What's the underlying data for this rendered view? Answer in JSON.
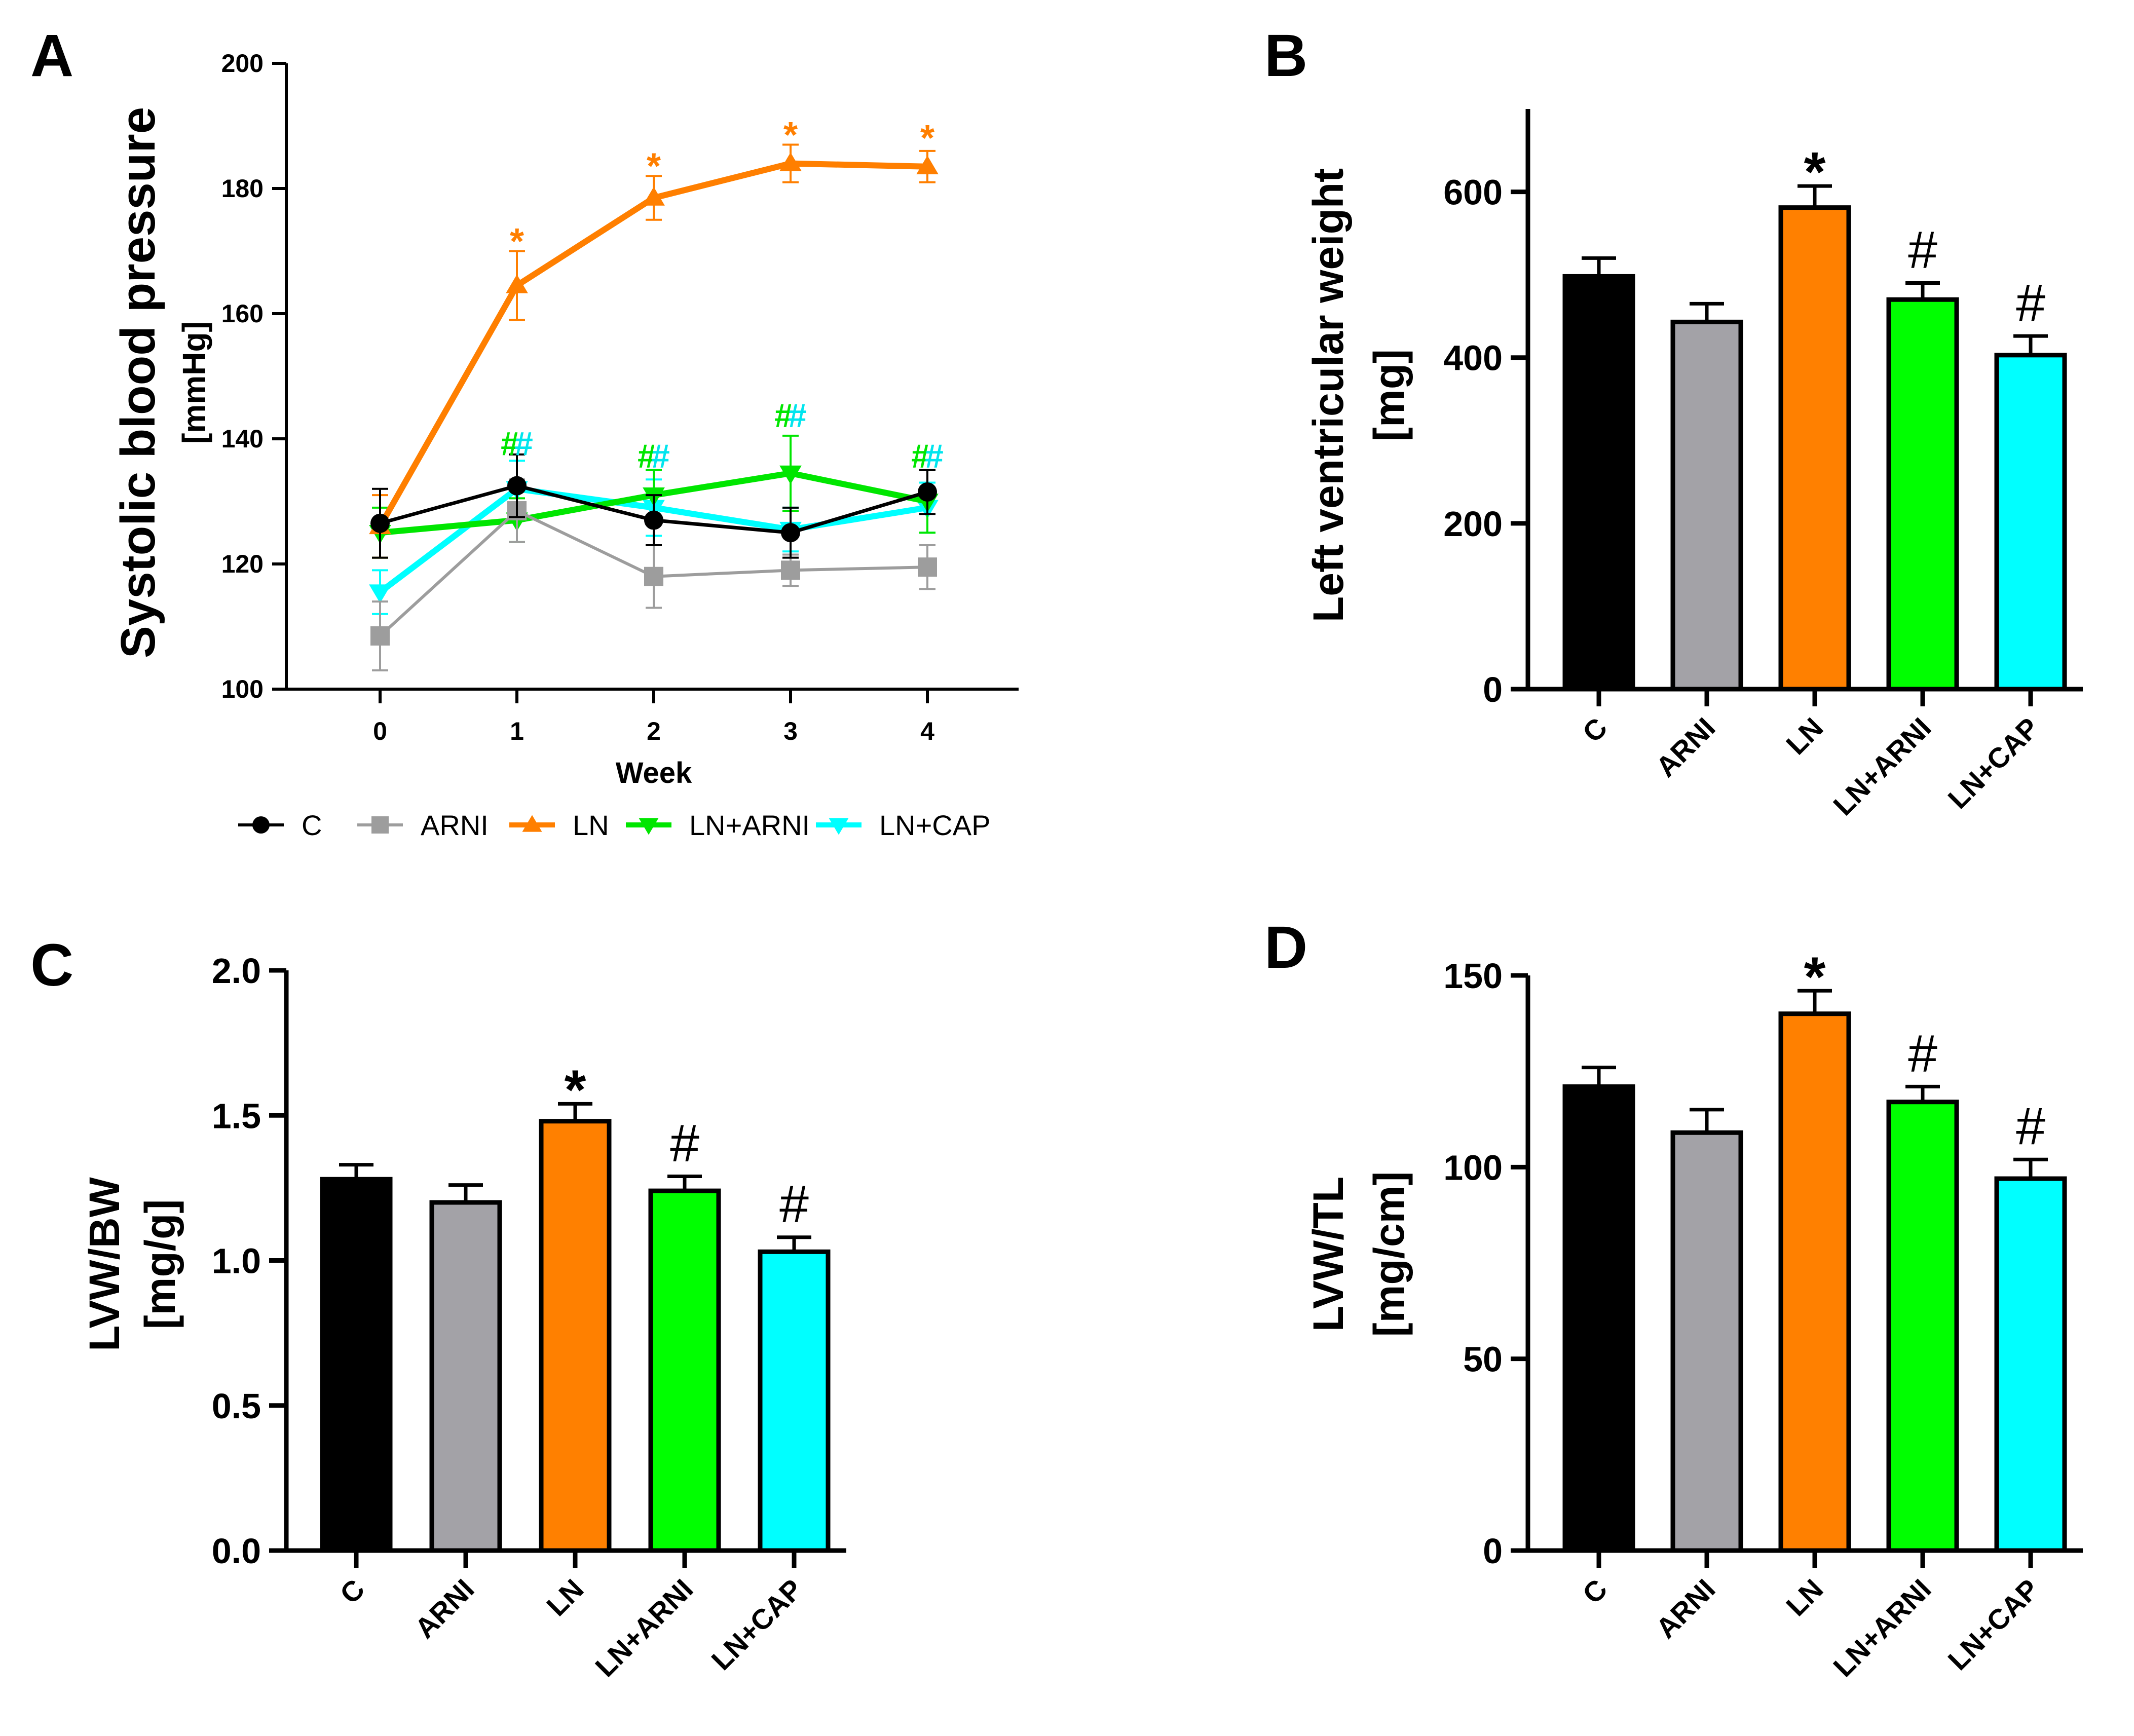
{
  "figure": {
    "panels": [
      "A",
      "B",
      "C",
      "D"
    ]
  },
  "legend": {
    "entries": [
      {
        "label": "C",
        "color": "#000000",
        "marker": "circle"
      },
      {
        "label": "ARNI",
        "color": "#9d9d9d",
        "marker": "square"
      },
      {
        "label": "LN",
        "color": "#ff7f00",
        "marker": "triangle-up"
      },
      {
        "label": "LN+ARNI",
        "color": "#00e600",
        "marker": "triangle-down"
      },
      {
        "label": "LN+CAP",
        "color": "#00ffff",
        "marker": "triangle-down"
      }
    ]
  },
  "chart_data": [
    {
      "panel": "A",
      "type": "line",
      "title": "",
      "ylabel": "Systolic blood pressure",
      "ylabel_unit": "[mmHg]",
      "xlabel": "Week",
      "x": [
        0,
        1,
        2,
        3,
        4
      ],
      "xticks": [
        "0",
        "1",
        "2",
        "3",
        "4"
      ],
      "ylim": [
        100,
        200
      ],
      "yticks": [
        100,
        120,
        140,
        160,
        180,
        200
      ],
      "grid": false,
      "legend_position": "bottom",
      "series": [
        {
          "name": "C",
          "color": "#000000",
          "marker": "circle",
          "values": [
            126.5,
            132.5,
            127,
            125,
            131.5
          ],
          "errors": [
            5.5,
            5,
            4,
            4,
            3.5
          ]
        },
        {
          "name": "ARNI",
          "color": "#9d9d9d",
          "marker": "square",
          "values": [
            108.5,
            128.5,
            118,
            119,
            119.5
          ],
          "errors": [
            5.5,
            5,
            5,
            2.5,
            3.5
          ]
        },
        {
          "name": "LN",
          "color": "#ff7f00",
          "marker": "triangle-up",
          "values": [
            126,
            164.5,
            178.5,
            184,
            183.5
          ],
          "errors": [
            5,
            5.5,
            3.5,
            3,
            2.5
          ]
        },
        {
          "name": "LN+ARNI",
          "color": "#00e600",
          "marker": "triangle-down",
          "values": [
            125,
            127,
            131,
            134.5,
            130
          ],
          "errors": [
            4,
            3.5,
            4,
            6,
            5
          ]
        },
        {
          "name": "LN+CAP",
          "color": "#00ffff",
          "marker": "triangle-down",
          "values": [
            115.5,
            132,
            129,
            125.5,
            129
          ],
          "errors": [
            3.5,
            4.5,
            4.5,
            3.5,
            4
          ]
        }
      ],
      "annotations": [
        {
          "x": 1,
          "y": 172,
          "text": "*",
          "color": "#ff7f00"
        },
        {
          "x": 2,
          "y": 184,
          "text": "*",
          "color": "#ff7f00"
        },
        {
          "x": 3,
          "y": 189,
          "text": "*",
          "color": "#ff7f00"
        },
        {
          "x": 4,
          "y": 188.5,
          "text": "*",
          "color": "#ff7f00"
        },
        {
          "x": 1,
          "y": 139,
          "text": "#",
          "color": "#00e600",
          "dx": -0.1
        },
        {
          "x": 1,
          "y": 139,
          "text": "#",
          "color": "#00e5ee",
          "dx": 0.1
        },
        {
          "x": 2,
          "y": 137,
          "text": "#",
          "color": "#00e600",
          "dx": -0.1
        },
        {
          "x": 2,
          "y": 137,
          "text": "#",
          "color": "#00e5ee",
          "dx": 0.1
        },
        {
          "x": 3,
          "y": 143.5,
          "text": "#",
          "color": "#00e600",
          "dx": -0.1
        },
        {
          "x": 3,
          "y": 143.5,
          "text": "#",
          "color": "#00e5ee",
          "dx": 0.1
        },
        {
          "x": 4,
          "y": 137,
          "text": "#",
          "color": "#00e600",
          "dx": -0.1
        },
        {
          "x": 4,
          "y": 137,
          "text": "#",
          "color": "#00e5ee",
          "dx": 0.1
        }
      ]
    },
    {
      "panel": "B",
      "type": "bar",
      "title": "",
      "ylabel": "Left ventricular weight",
      "ylabel_unit": "[mg]",
      "xlabel": "",
      "categories": [
        "C",
        "ARNI",
        "LN",
        "LN+ARNI",
        "LN+CAP"
      ],
      "values": [
        498,
        443,
        581,
        470,
        403
      ],
      "errors": [
        22,
        22,
        26,
        20,
        23
      ],
      "colors": [
        "#000000",
        "#a3a2a7",
        "#ff8000",
        "#00ff00",
        "#00ffff"
      ],
      "marks": [
        "",
        "",
        "*",
        "#",
        "#"
      ],
      "ylim": [
        0,
        700
      ],
      "yticks": [
        0,
        200,
        400,
        600
      ],
      "grid": false
    },
    {
      "panel": "C",
      "type": "bar",
      "title": "",
      "ylabel": "LVW/BW",
      "ylabel_unit": "[mg/g]",
      "xlabel": "",
      "categories": [
        "C",
        "ARNI",
        "LN",
        "LN+ARNI",
        "LN+CAP"
      ],
      "values": [
        1.28,
        1.2,
        1.48,
        1.24,
        1.03
      ],
      "errors": [
        0.05,
        0.06,
        0.06,
        0.05,
        0.05
      ],
      "colors": [
        "#000000",
        "#a3a2a7",
        "#ff8000",
        "#00ff00",
        "#00ffff"
      ],
      "marks": [
        "",
        "",
        "*",
        "#",
        "#"
      ],
      "ylim": [
        0,
        2
      ],
      "yticks": [
        "0.0",
        "0.5",
        "1.0",
        "1.5",
        "2.0"
      ],
      "grid": false
    },
    {
      "panel": "D",
      "type": "bar",
      "title": "",
      "ylabel": "LVW/TL",
      "ylabel_unit": "[mg/cm]",
      "xlabel": "",
      "categories": [
        "C",
        "ARNI",
        "LN",
        "LN+ARNI",
        "LN+CAP"
      ],
      "values": [
        121,
        109,
        140,
        117,
        97
      ],
      "errors": [
        5,
        6,
        6,
        4,
        5
      ],
      "colors": [
        "#000000",
        "#a3a2a7",
        "#ff8000",
        "#00ff00",
        "#00ffff"
      ],
      "marks": [
        "",
        "",
        "*",
        "#",
        "#"
      ],
      "ylim": [
        0,
        150
      ],
      "yticks": [
        0,
        50,
        100,
        150
      ],
      "grid": false
    }
  ]
}
